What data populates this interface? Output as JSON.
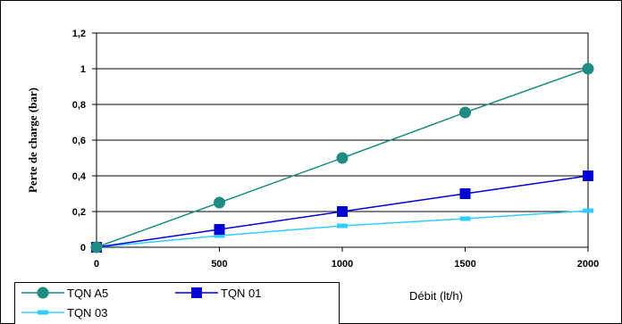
{
  "chart_data": {
    "type": "line",
    "xlabel": "Débit (lt/h)",
    "ylabel": "Perte de charge (bar)",
    "x": [
      0,
      500,
      1000,
      1500,
      2000
    ],
    "x_ticks": [
      "0",
      "500",
      "1000",
      "1500",
      "2000"
    ],
    "xlim": [
      0,
      2000
    ],
    "y_ticks": [
      "0",
      "0,2",
      "0,4",
      "0,6",
      "0,8",
      "1",
      "1,2"
    ],
    "ylim": [
      0,
      1.2
    ],
    "grid": "horizontal",
    "legend_position": "bottom-left",
    "series": [
      {
        "name": "TQN A5",
        "values": [
          0,
          0.25,
          0.5,
          0.755,
          1.0
        ],
        "color": "#1f8c84",
        "marker": "circle"
      },
      {
        "name": "TQN 01",
        "values": [
          0,
          0.1,
          0.2,
          0.3,
          0.4
        ],
        "color": "#0000d4",
        "marker": "square"
      },
      {
        "name": "TQN 03",
        "values": [
          0,
          0.065,
          0.12,
          0.16,
          0.205
        ],
        "color": "#33ccff",
        "marker": "dash"
      }
    ]
  }
}
